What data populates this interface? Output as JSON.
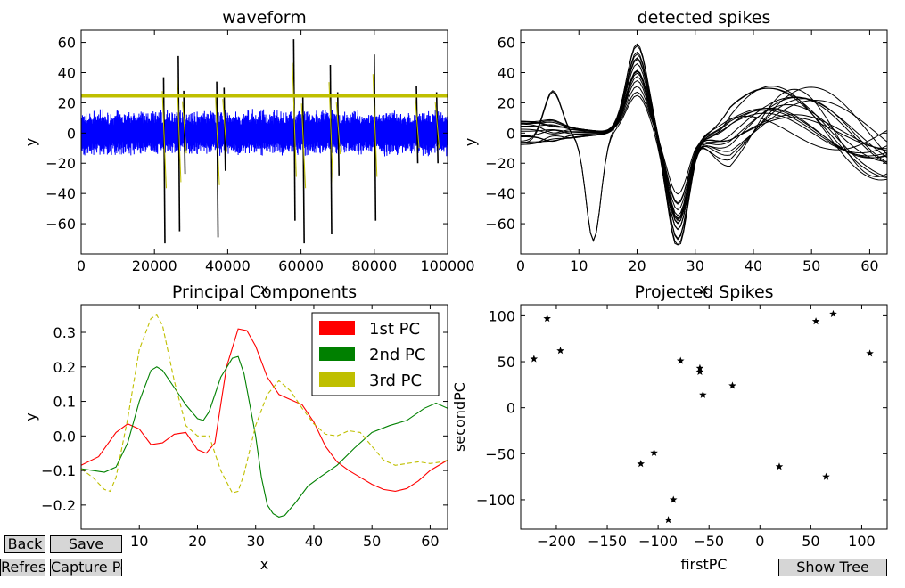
{
  "colors": {
    "waveform_signal": "#0000ff",
    "waveform_threshold": "#bfbf00",
    "spikes": "#000000",
    "pc1": "#ff0000",
    "pc2": "#008000",
    "pc3": "#bfbf00",
    "button_bg": "#d6d6d6"
  },
  "buttons": {
    "back": "Back",
    "save": "Save",
    "refresh": "Refresh",
    "capture": "Capture Point",
    "show_tree": "Show Tree"
  },
  "chart_data": [
    {
      "type": "line",
      "title": "waveform",
      "xlabel": "x",
      "ylabel": "y",
      "xlim": [
        0,
        100000
      ],
      "ylim": [
        -80,
        68
      ],
      "xticks": [
        0,
        20000,
        40000,
        60000,
        80000,
        100000
      ],
      "yticks": [
        -60,
        -40,
        -20,
        0,
        20,
        40,
        60
      ],
      "threshold": 24.5,
      "noise_amplitude": 16,
      "spikes": [
        {
          "x": 22500,
          "max": 37,
          "min": -73
        },
        {
          "x": 26500,
          "max": 51,
          "min": -65
        },
        {
          "x": 28000,
          "max": 28,
          "min": -27
        },
        {
          "x": 37000,
          "max": 34,
          "min": -69
        },
        {
          "x": 39000,
          "max": 30,
          "min": -25
        },
        {
          "x": 58000,
          "max": 62,
          "min": -58
        },
        {
          "x": 60500,
          "max": 26,
          "min": -73
        },
        {
          "x": 68000,
          "max": 45,
          "min": -67
        },
        {
          "x": 70000,
          "max": 27,
          "min": -28
        },
        {
          "x": 80000,
          "max": 52,
          "min": -58
        },
        {
          "x": 91500,
          "max": 31,
          "min": -20
        },
        {
          "x": 97000,
          "max": 27,
          "min": -20
        }
      ]
    },
    {
      "type": "line",
      "title": "detected spikes",
      "xlabel": "x",
      "ylabel": "y",
      "xlim": [
        0,
        63
      ],
      "ylim": [
        -80,
        68
      ],
      "xticks": [
        0,
        10,
        20,
        30,
        40,
        50,
        60
      ],
      "yticks": [
        -60,
        -40,
        -20,
        0,
        20,
        40,
        60
      ],
      "series_count": 17
    },
    {
      "type": "line",
      "title": "Principal Components",
      "xlabel": "x",
      "ylabel": "y",
      "xlim": [
        0,
        63
      ],
      "ylim": [
        -0.27,
        0.38
      ],
      "xticks": [
        0,
        10,
        20,
        30,
        40,
        50,
        60
      ],
      "yticks": [
        -0.2,
        -0.1,
        0.0,
        0.1,
        0.2,
        0.3
      ],
      "legend": "top-right",
      "series": [
        {
          "name": "1st PC",
          "style": "solid",
          "points": [
            [
              0,
              -0.085
            ],
            [
              3,
              -0.06
            ],
            [
              6,
              0.01
            ],
            [
              8,
              0.035
            ],
            [
              10,
              0.02
            ],
            [
              12,
              -0.025
            ],
            [
              14,
              -0.02
            ],
            [
              16,
              0.005
            ],
            [
              18,
              0.01
            ],
            [
              20,
              -0.04
            ],
            [
              21.5,
              -0.05
            ],
            [
              23,
              -0.02
            ],
            [
              25,
              0.2
            ],
            [
              27,
              0.31
            ],
            [
              28.5,
              0.305
            ],
            [
              30,
              0.26
            ],
            [
              32,
              0.17
            ],
            [
              34,
              0.12
            ],
            [
              36,
              0.105
            ],
            [
              38,
              0.09
            ],
            [
              40,
              0.04
            ],
            [
              42,
              -0.03
            ],
            [
              44,
              -0.075
            ],
            [
              46,
              -0.1
            ],
            [
              48,
              -0.12
            ],
            [
              50,
              -0.14
            ],
            [
              52,
              -0.155
            ],
            [
              54,
              -0.16
            ],
            [
              56,
              -0.152
            ],
            [
              58,
              -0.13
            ],
            [
              60,
              -0.1
            ],
            [
              63,
              -0.07
            ]
          ]
        },
        {
          "name": "2nd PC",
          "style": "solid",
          "points": [
            [
              0,
              -0.095
            ],
            [
              2,
              -0.1
            ],
            [
              4,
              -0.105
            ],
            [
              6,
              -0.09
            ],
            [
              8,
              -0.02
            ],
            [
              10,
              0.1
            ],
            [
              12,
              0.19
            ],
            [
              13,
              0.2
            ],
            [
              14,
              0.19
            ],
            [
              16,
              0.14
            ],
            [
              18,
              0.09
            ],
            [
              20,
              0.05
            ],
            [
              21,
              0.045
            ],
            [
              22,
              0.07
            ],
            [
              24,
              0.17
            ],
            [
              26,
              0.225
            ],
            [
              27,
              0.23
            ],
            [
              28,
              0.18
            ],
            [
              30,
              0.0
            ],
            [
              31,
              -0.12
            ],
            [
              32,
              -0.2
            ],
            [
              33,
              -0.225
            ],
            [
              34,
              -0.235
            ],
            [
              35,
              -0.23
            ],
            [
              37,
              -0.19
            ],
            [
              39,
              -0.145
            ],
            [
              41,
              -0.12
            ],
            [
              44,
              -0.085
            ],
            [
              47,
              -0.035
            ],
            [
              50,
              0.01
            ],
            [
              53,
              0.03
            ],
            [
              56,
              0.045
            ],
            [
              59,
              0.08
            ],
            [
              61,
              0.095
            ],
            [
              63,
              0.08
            ]
          ]
        },
        {
          "name": "3rd PC",
          "style": "dashed",
          "points": [
            [
              0,
              -0.095
            ],
            [
              2,
              -0.12
            ],
            [
              4,
              -0.155
            ],
            [
              5,
              -0.16
            ],
            [
              6,
              -0.12
            ],
            [
              8,
              0.05
            ],
            [
              10,
              0.25
            ],
            [
              12,
              0.34
            ],
            [
              13,
              0.35
            ],
            [
              14,
              0.32
            ],
            [
              16,
              0.16
            ],
            [
              18,
              0.03
            ],
            [
              20,
              0.0
            ],
            [
              22,
              0.0
            ],
            [
              24,
              -0.1
            ],
            [
              26,
              -0.165
            ],
            [
              27,
              -0.16
            ],
            [
              28,
              -0.11
            ],
            [
              30,
              0.03
            ],
            [
              32,
              0.12
            ],
            [
              34,
              0.16
            ],
            [
              36,
              0.13
            ],
            [
              38,
              0.08
            ],
            [
              40,
              0.035
            ],
            [
              42,
              0.005
            ],
            [
              44,
              0.0
            ],
            [
              46,
              0.015
            ],
            [
              48,
              0.01
            ],
            [
              50,
              -0.03
            ],
            [
              52,
              -0.07
            ],
            [
              54,
              -0.085
            ],
            [
              56,
              -0.08
            ],
            [
              58,
              -0.075
            ],
            [
              60,
              -0.08
            ],
            [
              62,
              -0.075
            ],
            [
              63,
              -0.07
            ]
          ]
        }
      ]
    },
    {
      "type": "scatter",
      "title": "Projected Spikes",
      "xlabel": "firstPC",
      "ylabel": "secondPC",
      "xlim": [
        -235,
        125
      ],
      "ylim": [
        -132,
        112
      ],
      "xticks": [
        -200,
        -150,
        -100,
        -50,
        0,
        50,
        100
      ],
      "yticks": [
        -100,
        -50,
        0,
        50,
        100
      ],
      "points": [
        [
          -222,
          53
        ],
        [
          -209,
          97
        ],
        [
          -196,
          62
        ],
        [
          -117,
          -61
        ],
        [
          -104,
          -49
        ],
        [
          -85,
          -100
        ],
        [
          -90,
          -122
        ],
        [
          -78,
          51
        ],
        [
          -59,
          43
        ],
        [
          -59,
          39
        ],
        [
          -56,
          14
        ],
        [
          -27,
          24
        ],
        [
          19,
          -64
        ],
        [
          55,
          94
        ],
        [
          72,
          102
        ],
        [
          65,
          -75
        ],
        [
          108,
          59
        ]
      ]
    }
  ]
}
